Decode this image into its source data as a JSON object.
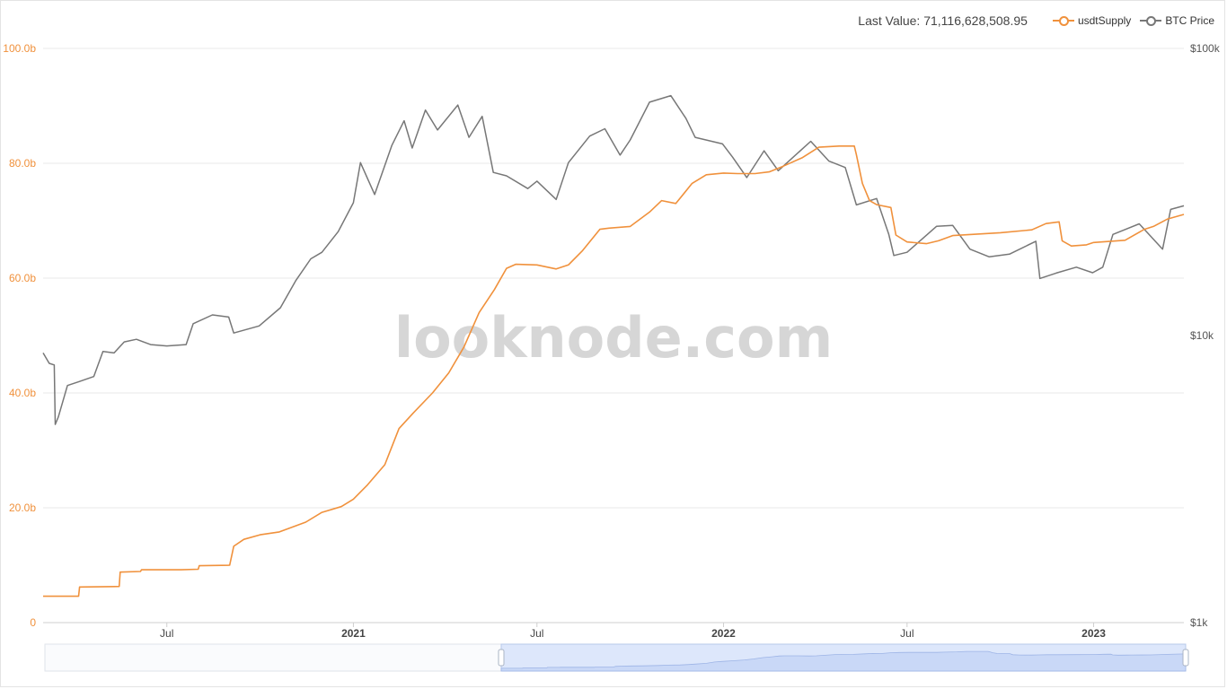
{
  "header": {
    "last_value_label": "Last Value: 71,116,628,508.95"
  },
  "legend": [
    {
      "name": "usdtSupply",
      "color": "#f0913c"
    },
    {
      "name": "BTC Price",
      "color": "#777777"
    }
  ],
  "watermark": "looknode.com",
  "colors": {
    "usdt": "#f0913c",
    "btc": "#777777",
    "grid": "#e8e8e8",
    "left_axis_text": "#f0913c",
    "right_axis_text": "#555555",
    "slider_fill": "#dde7fb",
    "slider_border": "#b7c8ea"
  },
  "chart_data": {
    "type": "line",
    "x_tick_labels": [
      {
        "label": "Jul",
        "date": "2020-07-01",
        "bold": false
      },
      {
        "label": "2021",
        "date": "2021-01-01",
        "bold": true
      },
      {
        "label": "Jul",
        "date": "2021-07-01",
        "bold": false
      },
      {
        "label": "2022",
        "date": "2022-01-01",
        "bold": true
      },
      {
        "label": "Jul",
        "date": "2022-07-01",
        "bold": false
      },
      {
        "label": "2023",
        "date": "2023-01-01",
        "bold": true
      }
    ],
    "xlim": [
      "2020-03-01",
      "2023-03-31"
    ],
    "y_left": {
      "ticks": [
        "0",
        "20.0b",
        "40.0b",
        "60.0b",
        "80.0b",
        "100.0b"
      ],
      "values": [
        0,
        20,
        40,
        60,
        80,
        100
      ],
      "ylim": [
        0,
        100
      ],
      "unit": "billion"
    },
    "y_right": {
      "ticks": [
        "$1k",
        "$10k",
        "$100k"
      ],
      "values": [
        1000,
        10000,
        100000
      ],
      "scale": "log",
      "ylim": [
        1000,
        100000
      ]
    },
    "series": [
      {
        "name": "usdtSupply",
        "axis": "left",
        "points": [
          [
            "2020-03-01",
            4.6
          ],
          [
            "2020-04-05",
            4.6
          ],
          [
            "2020-04-06",
            6.2
          ],
          [
            "2020-05-15",
            6.3
          ],
          [
            "2020-05-16",
            8.8
          ],
          [
            "2020-06-05",
            8.9
          ],
          [
            "2020-06-06",
            9.2
          ],
          [
            "2020-07-15",
            9.2
          ],
          [
            "2020-08-01",
            9.3
          ],
          [
            "2020-08-02",
            9.9
          ],
          [
            "2020-09-01",
            10.0
          ],
          [
            "2020-09-05",
            13.3
          ],
          [
            "2020-09-15",
            14.5
          ],
          [
            "2020-10-01",
            15.3
          ],
          [
            "2020-10-20",
            15.8
          ],
          [
            "2020-11-15",
            17.5
          ],
          [
            "2020-12-01",
            19.2
          ],
          [
            "2020-12-20",
            20.2
          ],
          [
            "2021-01-01",
            21.5
          ],
          [
            "2021-01-15",
            24.0
          ],
          [
            "2021-02-01",
            27.5
          ],
          [
            "2021-02-15",
            33.8
          ],
          [
            "2021-03-01",
            36.5
          ],
          [
            "2021-03-20",
            40.0
          ],
          [
            "2021-04-05",
            43.5
          ],
          [
            "2021-04-20",
            48.0
          ],
          [
            "2021-05-05",
            54.0
          ],
          [
            "2021-05-20",
            58.0
          ],
          [
            "2021-06-01",
            61.7
          ],
          [
            "2021-06-10",
            62.4
          ],
          [
            "2021-07-01",
            62.3
          ],
          [
            "2021-07-20",
            61.6
          ],
          [
            "2021-08-01",
            62.3
          ],
          [
            "2021-08-15",
            64.8
          ],
          [
            "2021-09-01",
            68.5
          ],
          [
            "2021-09-10",
            68.7
          ],
          [
            "2021-10-01",
            69.0
          ],
          [
            "2021-10-20",
            71.5
          ],
          [
            "2021-11-01",
            73.5
          ],
          [
            "2021-11-15",
            73.0
          ],
          [
            "2021-12-01",
            76.5
          ],
          [
            "2021-12-15",
            78.0
          ],
          [
            "2022-01-01",
            78.3
          ],
          [
            "2022-01-15",
            78.2
          ],
          [
            "2022-02-01",
            78.2
          ],
          [
            "2022-02-15",
            78.5
          ],
          [
            "2022-03-01",
            79.5
          ],
          [
            "2022-03-20",
            81.0
          ],
          [
            "2022-04-05",
            82.8
          ],
          [
            "2022-04-25",
            83.0
          ],
          [
            "2022-05-10",
            83.0
          ],
          [
            "2022-05-12",
            81.5
          ],
          [
            "2022-05-18",
            76.5
          ],
          [
            "2022-05-25",
            73.5
          ],
          [
            "2022-06-01",
            72.8
          ],
          [
            "2022-06-15",
            72.3
          ],
          [
            "2022-06-20",
            67.5
          ],
          [
            "2022-07-01",
            66.3
          ],
          [
            "2022-07-20",
            66.0
          ],
          [
            "2022-08-01",
            66.5
          ],
          [
            "2022-08-15",
            67.4
          ],
          [
            "2022-09-01",
            67.6
          ],
          [
            "2022-10-01",
            67.9
          ],
          [
            "2022-11-01",
            68.4
          ],
          [
            "2022-11-15",
            69.5
          ],
          [
            "2022-11-28",
            69.8
          ],
          [
            "2022-12-01",
            66.5
          ],
          [
            "2022-12-10",
            65.6
          ],
          [
            "2022-12-25",
            65.8
          ],
          [
            "2023-01-01",
            66.2
          ],
          [
            "2023-02-01",
            66.6
          ],
          [
            "2023-02-20",
            68.5
          ],
          [
            "2023-03-01",
            69.0
          ],
          [
            "2023-03-15",
            70.3
          ],
          [
            "2023-03-31",
            71.1
          ]
        ]
      },
      {
        "name": "BTC Price",
        "axis": "right",
        "points": [
          [
            "2020-03-01",
            8700
          ],
          [
            "2020-03-07",
            8000
          ],
          [
            "2020-03-12",
            7900
          ],
          [
            "2020-03-13",
            4900
          ],
          [
            "2020-03-16",
            5200
          ],
          [
            "2020-03-25",
            6700
          ],
          [
            "2020-04-05",
            6900
          ],
          [
            "2020-04-20",
            7200
          ],
          [
            "2020-04-29",
            8800
          ],
          [
            "2020-05-10",
            8700
          ],
          [
            "2020-05-20",
            9500
          ],
          [
            "2020-06-01",
            9700
          ],
          [
            "2020-06-15",
            9300
          ],
          [
            "2020-07-01",
            9200
          ],
          [
            "2020-07-20",
            9300
          ],
          [
            "2020-07-27",
            11000
          ],
          [
            "2020-08-15",
            11800
          ],
          [
            "2020-08-31",
            11600
          ],
          [
            "2020-09-05",
            10200
          ],
          [
            "2020-09-30",
            10800
          ],
          [
            "2020-10-21",
            12500
          ],
          [
            "2020-11-05",
            15500
          ],
          [
            "2020-11-20",
            18500
          ],
          [
            "2020-12-01",
            19500
          ],
          [
            "2020-12-17",
            23000
          ],
          [
            "2021-01-01",
            29000
          ],
          [
            "2021-01-08",
            40000
          ],
          [
            "2021-01-22",
            31000
          ],
          [
            "2021-02-08",
            46000
          ],
          [
            "2021-02-20",
            56000
          ],
          [
            "2021-02-28",
            45000
          ],
          [
            "2021-03-13",
            61000
          ],
          [
            "2021-03-25",
            52000
          ],
          [
            "2021-04-14",
            63500
          ],
          [
            "2021-04-25",
            49000
          ],
          [
            "2021-05-08",
            58000
          ],
          [
            "2021-05-19",
            37000
          ],
          [
            "2021-06-01",
            36000
          ],
          [
            "2021-06-22",
            32500
          ],
          [
            "2021-07-01",
            34500
          ],
          [
            "2021-07-20",
            29800
          ],
          [
            "2021-08-01",
            40000
          ],
          [
            "2021-08-22",
            49500
          ],
          [
            "2021-09-06",
            52500
          ],
          [
            "2021-09-21",
            42500
          ],
          [
            "2021-10-01",
            48000
          ],
          [
            "2021-10-20",
            65000
          ],
          [
            "2021-11-10",
            68500
          ],
          [
            "2021-11-25",
            57000
          ],
          [
            "2021-12-04",
            49000
          ],
          [
            "2021-12-31",
            46500
          ],
          [
            "2022-01-10",
            41800
          ],
          [
            "2022-01-24",
            35500
          ],
          [
            "2022-02-10",
            44000
          ],
          [
            "2022-02-24",
            37500
          ],
          [
            "2022-03-28",
            47500
          ],
          [
            "2022-04-15",
            40500
          ],
          [
            "2022-05-01",
            38500
          ],
          [
            "2022-05-12",
            28500
          ],
          [
            "2022-06-01",
            30000
          ],
          [
            "2022-06-13",
            22500
          ],
          [
            "2022-06-18",
            19000
          ],
          [
            "2022-07-01",
            19500
          ],
          [
            "2022-07-30",
            24000
          ],
          [
            "2022-08-15",
            24200
          ],
          [
            "2022-09-01",
            20000
          ],
          [
            "2022-09-20",
            18800
          ],
          [
            "2022-10-10",
            19200
          ],
          [
            "2022-11-05",
            21300
          ],
          [
            "2022-11-09",
            15800
          ],
          [
            "2022-11-25",
            16500
          ],
          [
            "2022-12-15",
            17300
          ],
          [
            "2022-12-31",
            16550
          ],
          [
            "2023-01-10",
            17300
          ],
          [
            "2023-01-20",
            22500
          ],
          [
            "2023-02-15",
            24500
          ],
          [
            "2023-03-10",
            20000
          ],
          [
            "2023-03-18",
            27500
          ],
          [
            "2023-03-31",
            28300
          ]
        ]
      }
    ],
    "grid": true,
    "legend_position": "top-right",
    "title": "",
    "xlabel": "",
    "ylabel": ""
  },
  "slider": {
    "selection_start_date": "2020-03-01",
    "selection_end_date": "2023-03-31"
  }
}
